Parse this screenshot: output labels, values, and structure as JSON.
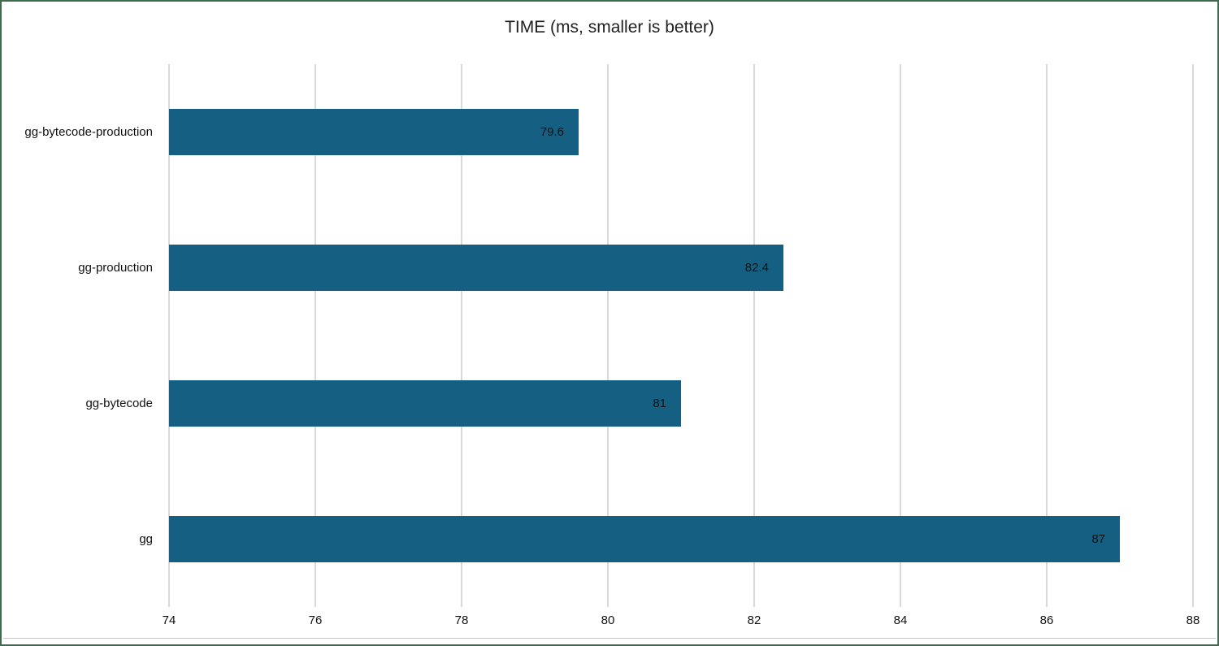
{
  "chart_data": {
    "type": "bar",
    "orientation": "horizontal",
    "title": "TIME (ms, smaller is better)",
    "categories": [
      "gg-bytecode-production",
      "gg-production",
      "gg-bytecode",
      "gg"
    ],
    "values": [
      79.6,
      82.4,
      81,
      87
    ],
    "value_labels": [
      "79.6",
      "82.4",
      "81",
      "87"
    ],
    "xlim": [
      74,
      88
    ],
    "x_ticks": [
      74,
      76,
      78,
      80,
      82,
      84,
      86,
      88
    ],
    "x_tick_labels": [
      "74",
      "76",
      "78",
      "80",
      "82",
      "84",
      "86",
      "88"
    ],
    "grid": "vertical",
    "legend": "none",
    "data_label_position": "inside-end",
    "colors": {
      "bar": "#156082",
      "gridline": "#d9d9d9",
      "text": "#111111",
      "title_text": "#1f1f1f",
      "frame_border": "#3e6b4e",
      "background": "#ffffff"
    }
  }
}
